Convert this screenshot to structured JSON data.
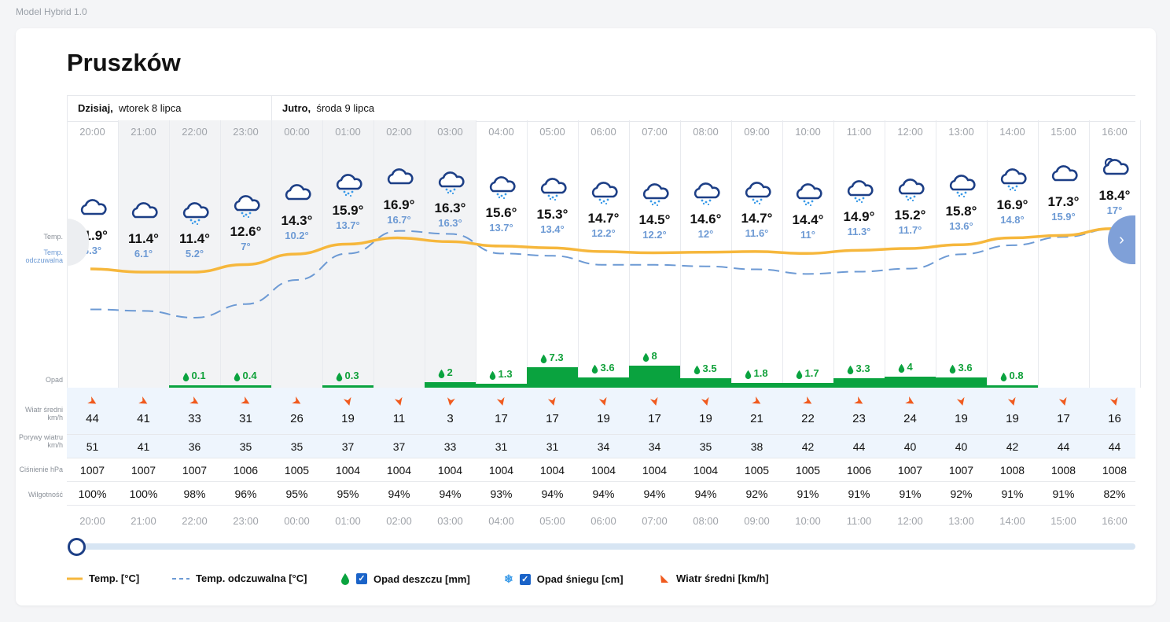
{
  "model_label": "Model Hybrid 1.0",
  "city": "Pruszków",
  "days": [
    {
      "label": "Dzisiaj,",
      "date": "wtorek 8 lipca"
    },
    {
      "label": "Jutro,",
      "date": "środa 9 lipca"
    }
  ],
  "row_labels": {
    "temp": "Temp.",
    "feels": "Temp. odczuwalna",
    "precip": "Opad",
    "wind": "Wiatr średni km/h",
    "gusts": "Porywy wiatru km/h",
    "pressure": "Ciśnienie hPa",
    "humidity": "Wilgotność"
  },
  "hours": [
    {
      "time": "20:00",
      "temp": "11.9°",
      "feels": "6.3°",
      "rain": "",
      "wind": "44",
      "gust": "51",
      "pressure": "1007",
      "humidity": "100%"
    },
    {
      "time": "21:00",
      "temp": "11.4°",
      "feels": "6.1°",
      "rain": "",
      "wind": "41",
      "gust": "41",
      "pressure": "1007",
      "humidity": "100%"
    },
    {
      "time": "22:00",
      "temp": "11.4°",
      "feels": "5.2°",
      "rain": "0.1",
      "wind": "33",
      "gust": "36",
      "pressure": "1007",
      "humidity": "98%"
    },
    {
      "time": "23:00",
      "temp": "12.6°",
      "feels": "7°",
      "rain": "0.4",
      "wind": "31",
      "gust": "35",
      "pressure": "1006",
      "humidity": "96%"
    },
    {
      "time": "00:00",
      "temp": "14.3°",
      "feels": "10.2°",
      "rain": "",
      "wind": "26",
      "gust": "35",
      "pressure": "1005",
      "humidity": "95%"
    },
    {
      "time": "01:00",
      "temp": "15.9°",
      "feels": "13.7°",
      "rain": "0.3",
      "wind": "19",
      "gust": "37",
      "pressure": "1004",
      "humidity": "95%"
    },
    {
      "time": "02:00",
      "temp": "16.9°",
      "feels": "16.7°",
      "rain": "",
      "wind": "11",
      "gust": "37",
      "pressure": "1004",
      "humidity": "94%"
    },
    {
      "time": "03:00",
      "temp": "16.3°",
      "feels": "16.3°",
      "rain": "2",
      "wind": "3",
      "gust": "33",
      "pressure": "1004",
      "humidity": "94%"
    },
    {
      "time": "04:00",
      "temp": "15.6°",
      "feels": "13.7°",
      "rain": "1.3",
      "wind": "17",
      "gust": "31",
      "pressure": "1004",
      "humidity": "93%"
    },
    {
      "time": "05:00",
      "temp": "15.3°",
      "feels": "13.4°",
      "rain": "7.3",
      "wind": "17",
      "gust": "31",
      "pressure": "1004",
      "humidity": "94%"
    },
    {
      "time": "06:00",
      "temp": "14.7°",
      "feels": "12.2°",
      "rain": "3.6",
      "wind": "19",
      "gust": "34",
      "pressure": "1004",
      "humidity": "94%"
    },
    {
      "time": "07:00",
      "temp": "14.5°",
      "feels": "12.2°",
      "rain": "8",
      "wind": "17",
      "gust": "34",
      "pressure": "1004",
      "humidity": "94%"
    },
    {
      "time": "08:00",
      "temp": "14.6°",
      "feels": "12°",
      "rain": "3.5",
      "wind": "19",
      "gust": "35",
      "pressure": "1004",
      "humidity": "94%"
    },
    {
      "time": "09:00",
      "temp": "14.7°",
      "feels": "11.6°",
      "rain": "1.8",
      "wind": "21",
      "gust": "38",
      "pressure": "1005",
      "humidity": "92%"
    },
    {
      "time": "10:00",
      "temp": "14.4°",
      "feels": "11°",
      "rain": "1.7",
      "wind": "22",
      "gust": "42",
      "pressure": "1005",
      "humidity": "91%"
    },
    {
      "time": "11:00",
      "temp": "14.9°",
      "feels": "11.3°",
      "rain": "3.3",
      "wind": "23",
      "gust": "44",
      "pressure": "1006",
      "humidity": "91%"
    },
    {
      "time": "12:00",
      "temp": "15.2°",
      "feels": "11.7°",
      "rain": "4",
      "wind": "24",
      "gust": "40",
      "pressure": "1007",
      "humidity": "91%"
    },
    {
      "time": "13:00",
      "temp": "15.8°",
      "feels": "13.6°",
      "rain": "3.6",
      "wind": "19",
      "gust": "40",
      "pressure": "1007",
      "humidity": "92%"
    },
    {
      "time": "14:00",
      "temp": "16.9°",
      "feels": "14.8°",
      "rain": "0.8",
      "wind": "19",
      "gust": "42",
      "pressure": "1008",
      "humidity": "91%"
    },
    {
      "time": "15:00",
      "temp": "17.3°",
      "feels": "15.9°",
      "rain": "",
      "wind": "17",
      "gust": "44",
      "pressure": "1008",
      "humidity": "91%"
    },
    {
      "time": "16:00",
      "temp": "18.4°",
      "feels": "17°",
      "rain": "",
      "wind": "16",
      "gust": "44",
      "pressure": "1008",
      "humidity": "82%"
    }
  ],
  "legend": {
    "temp": "Temp. [°C]",
    "feels": "Temp. odczuwalna [°C]",
    "rain": "Opad deszczu [mm]",
    "snow": "Opad śniegu [cm]",
    "wind": "Wiatr średni [km/h]"
  },
  "colors": {
    "temp_line": "#f6b73c",
    "feels_line": "#6d9ad4",
    "rain_bar": "#0aa33f",
    "wind_arrow": "#f05a1e",
    "wind_row_bg": "#eef5fd",
    "icon": "#1d3f86"
  },
  "icons": {
    "weather": "cloud-rain-icon",
    "last_weather": "cloud-sun-icon",
    "wind": "wind-arrow-icon",
    "drop": "drop-icon",
    "snow": "snowflake-icon",
    "next": "chevron-right-icon"
  }
}
